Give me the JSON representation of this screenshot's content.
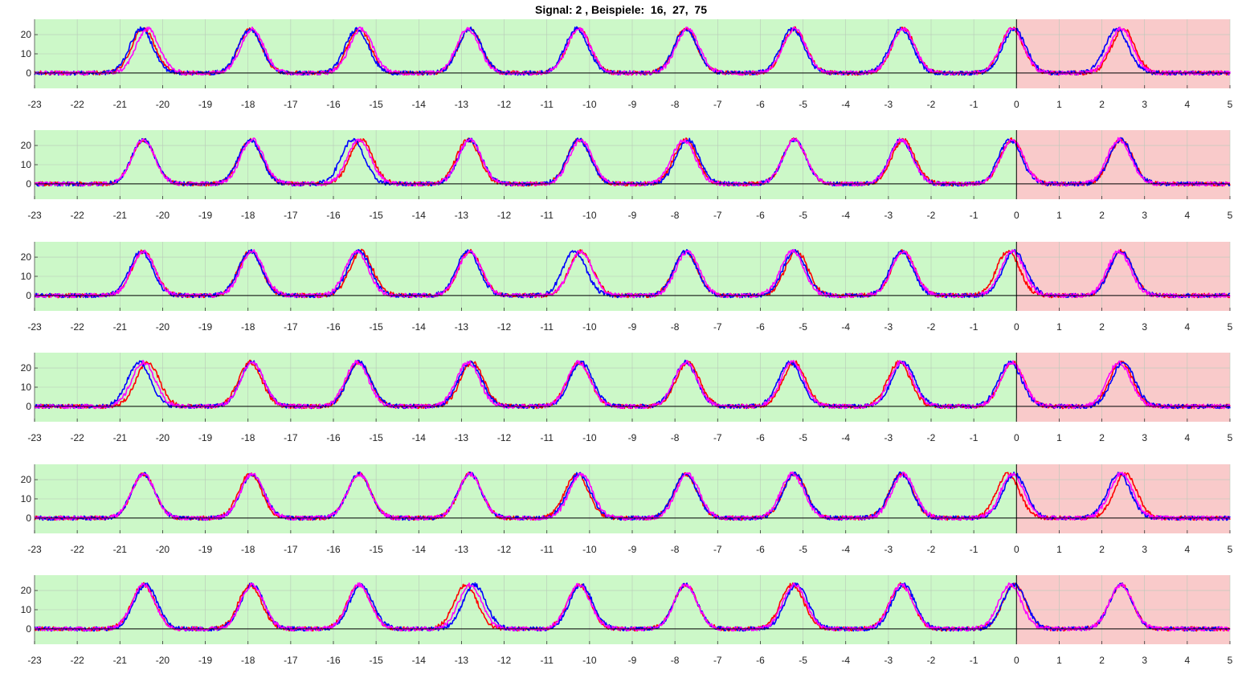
{
  "figure": {
    "title": "Signal: 2 , Beispiele:  16,  27,  75"
  },
  "colors": {
    "past_region": "#ccf8c8",
    "future_region": "#f9caca",
    "grid": "#b8c8b8",
    "zero_line": "#000000",
    "series": [
      "#ff0000",
      "#0000ff",
      "#ff00ff"
    ]
  },
  "chart_data": {
    "type": "line",
    "panel_count": 6,
    "xlim": [
      -23,
      5
    ],
    "ylim": [
      -8,
      28
    ],
    "xticks": [
      -23,
      -22,
      -21,
      -20,
      -19,
      -18,
      -17,
      -16,
      -15,
      -14,
      -13,
      -12,
      -11,
      -10,
      -9,
      -8,
      -7,
      -6,
      -5,
      -4,
      -3,
      -2,
      -1,
      0,
      1,
      2,
      3,
      4,
      5
    ],
    "yticks": [
      0,
      10,
      20
    ],
    "past_region": [
      -23,
      0
    ],
    "future_region": [
      0,
      5
    ],
    "grid": true,
    "baseline": 0,
    "pulse_amplitude": 23,
    "pulse_width_sigma": 0.27,
    "series_colors": [
      "red",
      "blue",
      "magenta"
    ],
    "panels": [
      {
        "series": [
          {
            "peaks": [
              -20.45,
              -17.95,
              -15.4,
              -12.8,
              -10.25,
              -7.75,
              -5.2,
              -2.65,
              -0.1,
              2.5
            ]
          },
          {
            "peaks": [
              -20.5,
              -17.95,
              -15.45,
              -12.8,
              -10.3,
              -7.75,
              -5.25,
              -2.7,
              -0.05,
              2.35
            ]
          },
          {
            "peaks": [
              -20.35,
              -17.9,
              -15.35,
              -12.85,
              -10.25,
              -7.7,
              -5.2,
              -2.65,
              -0.1,
              2.45
            ]
          }
        ]
      },
      {
        "series": [
          {
            "peaks": [
              -20.45,
              -17.95,
              -15.35,
              -12.85,
              -10.25,
              -7.75,
              -5.2,
              -2.65,
              -0.1,
              2.45
            ]
          },
          {
            "peaks": [
              -20.45,
              -17.95,
              -15.55,
              -12.8,
              -10.25,
              -7.7,
              -5.2,
              -2.7,
              -0.15,
              2.45
            ]
          },
          {
            "peaks": [
              -20.45,
              -17.9,
              -15.4,
              -12.8,
              -10.2,
              -7.8,
              -5.2,
              -2.7,
              -0.1,
              2.4
            ]
          }
        ]
      },
      {
        "series": [
          {
            "peaks": [
              -20.45,
              -17.95,
              -15.35,
              -12.8,
              -10.2,
              -7.75,
              -5.15,
              -2.65,
              -0.2,
              2.45
            ]
          },
          {
            "peaks": [
              -20.5,
              -17.95,
              -15.4,
              -12.85,
              -10.35,
              -7.75,
              -5.2,
              -2.7,
              -0.05,
              2.45
            ]
          },
          {
            "peaks": [
              -20.45,
              -17.9,
              -15.45,
              -12.8,
              -10.2,
              -7.7,
              -5.25,
              -2.65,
              -0.1,
              2.4
            ]
          }
        ]
      },
      {
        "series": [
          {
            "peaks": [
              -20.35,
              -17.95,
              -15.4,
              -12.75,
              -10.25,
              -7.7,
              -5.2,
              -2.75,
              -0.1,
              2.45
            ]
          },
          {
            "peaks": [
              -20.55,
              -17.9,
              -15.4,
              -12.8,
              -10.2,
              -7.75,
              -5.3,
              -2.65,
              -0.15,
              2.5
            ]
          },
          {
            "peaks": [
              -20.45,
              -17.9,
              -15.45,
              -12.85,
              -10.25,
              -7.75,
              -5.25,
              -2.7,
              -0.1,
              2.4
            ]
          }
        ]
      },
      {
        "series": [
          {
            "peaks": [
              -20.45,
              -17.95,
              -15.4,
              -12.8,
              -10.3,
              -7.75,
              -5.2,
              -2.7,
              -0.2,
              2.55
            ]
          },
          {
            "peaks": [
              -20.45,
              -17.9,
              -15.4,
              -12.8,
              -10.25,
              -7.75,
              -5.2,
              -2.7,
              -0.05,
              2.4
            ]
          },
          {
            "peaks": [
              -20.45,
              -17.9,
              -15.4,
              -12.8,
              -10.2,
              -7.7,
              -5.25,
              -2.65,
              -0.1,
              2.45
            ]
          }
        ]
      },
      {
        "series": [
          {
            "peaks": [
              -20.45,
              -17.95,
              -15.4,
              -12.9,
              -10.25,
              -7.75,
              -5.25,
              -2.7,
              -0.05,
              2.45
            ]
          },
          {
            "peaks": [
              -20.4,
              -17.9,
              -15.35,
              -12.7,
              -10.2,
              -7.75,
              -5.15,
              -2.65,
              -0.05,
              2.45
            ]
          },
          {
            "peaks": [
              -20.45,
              -17.9,
              -15.4,
              -12.8,
              -10.25,
              -7.75,
              -5.2,
              -2.7,
              -0.15,
              2.45
            ]
          }
        ]
      }
    ]
  }
}
